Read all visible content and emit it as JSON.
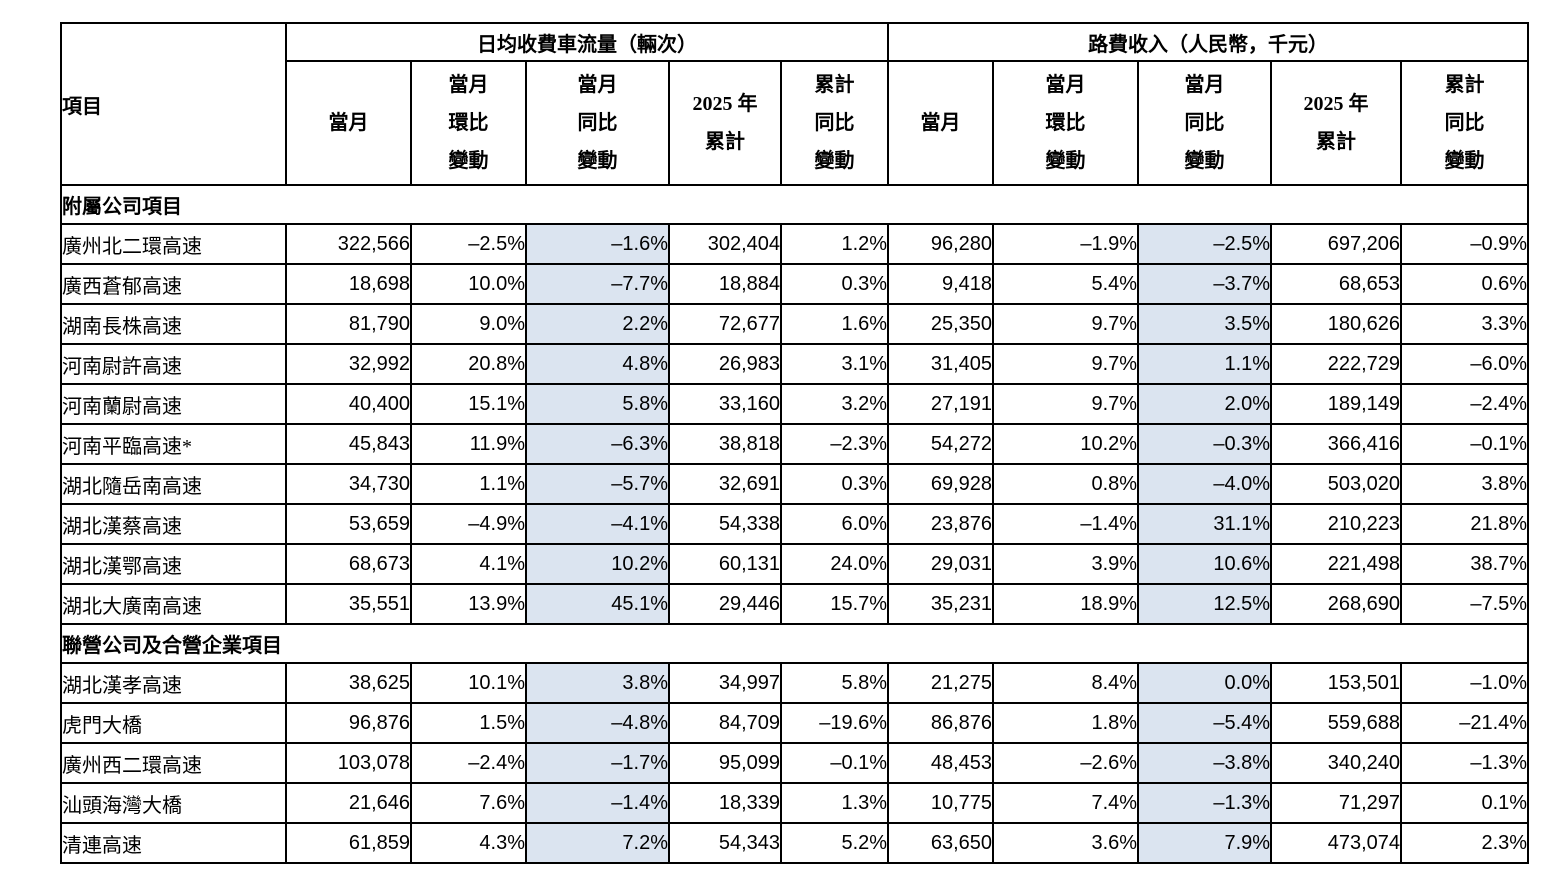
{
  "table": {
    "corner_header": "項目",
    "highlight_color": "#dbe4f0",
    "groups": [
      {
        "title": "日均收費車流量（輛次）"
      },
      {
        "title": "路費收入（人民幣，千元）"
      }
    ],
    "sub_columns": [
      {
        "lines": [
          "當月"
        ],
        "highlight": false
      },
      {
        "lines": [
          "當月",
          "環比",
          "變動"
        ],
        "highlight": false
      },
      {
        "lines": [
          "當月",
          "同比",
          "變動"
        ],
        "highlight": true
      },
      {
        "lines": [
          "2025 年",
          "累計"
        ],
        "highlight": false
      },
      {
        "lines": [
          "累計",
          "同比",
          "變動"
        ],
        "highlight": false
      }
    ],
    "sections": [
      {
        "title": "附屬公司項目",
        "rows": [
          {
            "name": "廣州北二環高速",
            "values": [
              "322,566",
              "–2.5%",
              "–1.6%",
              "302,404",
              "1.2%",
              "96,280",
              "–1.9%",
              "–2.5%",
              "697,206",
              "–0.9%"
            ]
          },
          {
            "name": "廣西蒼郁高速",
            "values": [
              "18,698",
              "10.0%",
              "–7.7%",
              "18,884",
              "0.3%",
              "9,418",
              "5.4%",
              "–3.7%",
              "68,653",
              "0.6%"
            ]
          },
          {
            "name": "湖南長株高速",
            "values": [
              "81,790",
              "9.0%",
              "2.2%",
              "72,677",
              "1.6%",
              "25,350",
              "9.7%",
              "3.5%",
              "180,626",
              "3.3%"
            ]
          },
          {
            "name": "河南尉許高速",
            "values": [
              "32,992",
              "20.8%",
              "4.8%",
              "26,983",
              "3.1%",
              "31,405",
              "9.7%",
              "1.1%",
              "222,729",
              "–6.0%"
            ]
          },
          {
            "name": "河南蘭尉高速",
            "values": [
              "40,400",
              "15.1%",
              "5.8%",
              "33,160",
              "3.2%",
              "27,191",
              "9.7%",
              "2.0%",
              "189,149",
              "–2.4%"
            ]
          },
          {
            "name": "河南平臨高速*",
            "values": [
              "45,843",
              "11.9%",
              "–6.3%",
              "38,818",
              "–2.3%",
              "54,272",
              "10.2%",
              "–0.3%",
              "366,416",
              "–0.1%"
            ]
          },
          {
            "name": "湖北隨岳南高速",
            "values": [
              "34,730",
              "1.1%",
              "–5.7%",
              "32,691",
              "0.3%",
              "69,928",
              "0.8%",
              "–4.0%",
              "503,020",
              "3.8%"
            ]
          },
          {
            "name": "湖北漢蔡高速",
            "values": [
              "53,659",
              "–4.9%",
              "–4.1%",
              "54,338",
              "6.0%",
              "23,876",
              "–1.4%",
              "31.1%",
              "210,223",
              "21.8%"
            ]
          },
          {
            "name": "湖北漢鄂高速",
            "values": [
              "68,673",
              "4.1%",
              "10.2%",
              "60,131",
              "24.0%",
              "29,031",
              "3.9%",
              "10.6%",
              "221,498",
              "38.7%"
            ]
          },
          {
            "name": "湖北大廣南高速",
            "values": [
              "35,551",
              "13.9%",
              "45.1%",
              "29,446",
              "15.7%",
              "35,231",
              "18.9%",
              "12.5%",
              "268,690",
              "–7.5%"
            ]
          }
        ]
      },
      {
        "title": "聯營公司及合營企業項目",
        "rows": [
          {
            "name": "湖北漢孝高速",
            "values": [
              "38,625",
              "10.1%",
              "3.8%",
              "34,997",
              "5.8%",
              "21,275",
              "8.4%",
              "0.0%",
              "153,501",
              "–1.0%"
            ]
          },
          {
            "name": "虎門大橋",
            "values": [
              "96,876",
              "1.5%",
              "–4.8%",
              "84,709",
              "–19.6%",
              "86,876",
              "1.8%",
              "–5.4%",
              "559,688",
              "–21.4%"
            ]
          },
          {
            "name": "廣州西二環高速",
            "values": [
              "103,078",
              "–2.4%",
              "–1.7%",
              "95,099",
              "–0.1%",
              "48,453",
              "–2.6%",
              "–3.8%",
              "340,240",
              "–1.3%"
            ]
          },
          {
            "name": "汕頭海灣大橋",
            "values": [
              "21,646",
              "7.6%",
              "–1.4%",
              "18,339",
              "1.3%",
              "10,775",
              "7.4%",
              "–1.3%",
              "71,297",
              "0.1%"
            ]
          },
          {
            "name": "清連高速",
            "values": [
              "61,859",
              "4.3%",
              "7.2%",
              "54,343",
              "5.2%",
              "63,650",
              "3.6%",
              "7.9%",
              "473,074",
              "2.3%"
            ]
          }
        ]
      }
    ]
  }
}
